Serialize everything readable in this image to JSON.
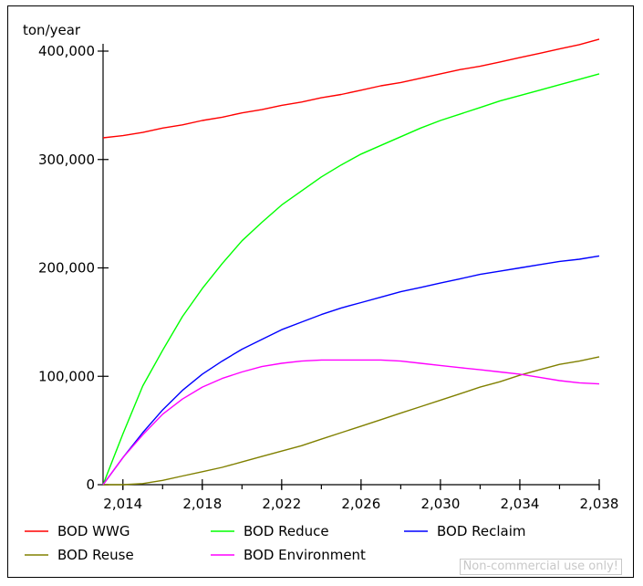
{
  "chart_data": {
    "type": "line",
    "unit_label": "ton/year",
    "x_ticks": [
      "2,014",
      "2,018",
      "2,022",
      "2,026",
      "2,030",
      "2,034",
      "2,038"
    ],
    "y_ticks": [
      "0",
      "100,000",
      "200,000",
      "300,000",
      "400,000"
    ],
    "x_range": [
      2013,
      2038
    ],
    "y_range": [
      0,
      400000
    ],
    "grid": false,
    "legend_position": "bottom",
    "x": [
      2013,
      2014,
      2015,
      2016,
      2017,
      2018,
      2019,
      2020,
      2021,
      2022,
      2023,
      2024,
      2025,
      2026,
      2027,
      2028,
      2029,
      2030,
      2031,
      2032,
      2033,
      2034,
      2035,
      2036,
      2037,
      2038
    ],
    "series": [
      {
        "name": "BOD WWG",
        "color": "#ff0000",
        "values": [
          320000,
          322000,
          325000,
          329000,
          332000,
          336000,
          339000,
          343000,
          346000,
          350000,
          353000,
          357000,
          360000,
          364000,
          368000,
          371000,
          375000,
          379000,
          383000,
          386000,
          390000,
          394000,
          398000,
          402000,
          406000,
          411000
        ]
      },
      {
        "name": "BOD Reduce",
        "color": "#00ff00",
        "values": [
          0,
          47000,
          91000,
          124000,
          155000,
          181000,
          204000,
          225000,
          242000,
          258000,
          271000,
          284000,
          295000,
          305000,
          313000,
          321000,
          329000,
          336000,
          342000,
          348000,
          354000,
          359000,
          364000,
          369000,
          374000,
          379000
        ]
      },
      {
        "name": "BOD Reclaim",
        "color": "#0000ff",
        "values": [
          0,
          25000,
          48000,
          69000,
          87000,
          102000,
          114000,
          125000,
          134000,
          143000,
          150000,
          157000,
          163000,
          168000,
          173000,
          178000,
          182000,
          186000,
          190000,
          194000,
          197000,
          200000,
          203000,
          206000,
          208000,
          211000
        ]
      },
      {
        "name": "BOD Reuse",
        "color": "#808000",
        "values": [
          0,
          0,
          1000,
          4000,
          8000,
          12000,
          16000,
          21000,
          26000,
          31000,
          36000,
          42000,
          48000,
          54000,
          60000,
          66000,
          72000,
          78000,
          84000,
          90000,
          95000,
          101000,
          106000,
          111000,
          114000,
          118000
        ]
      },
      {
        "name": "BOD Environment",
        "color": "#ff00ff",
        "values": [
          0,
          25000,
          46000,
          65000,
          79000,
          90000,
          98000,
          104000,
          109000,
          112000,
          114000,
          115000,
          115000,
          115000,
          115000,
          114000,
          112000,
          110000,
          108000,
          106000,
          104000,
          102000,
          99000,
          96000,
          94000,
          93000
        ]
      }
    ]
  },
  "watermark": "Non-commercial use only!"
}
